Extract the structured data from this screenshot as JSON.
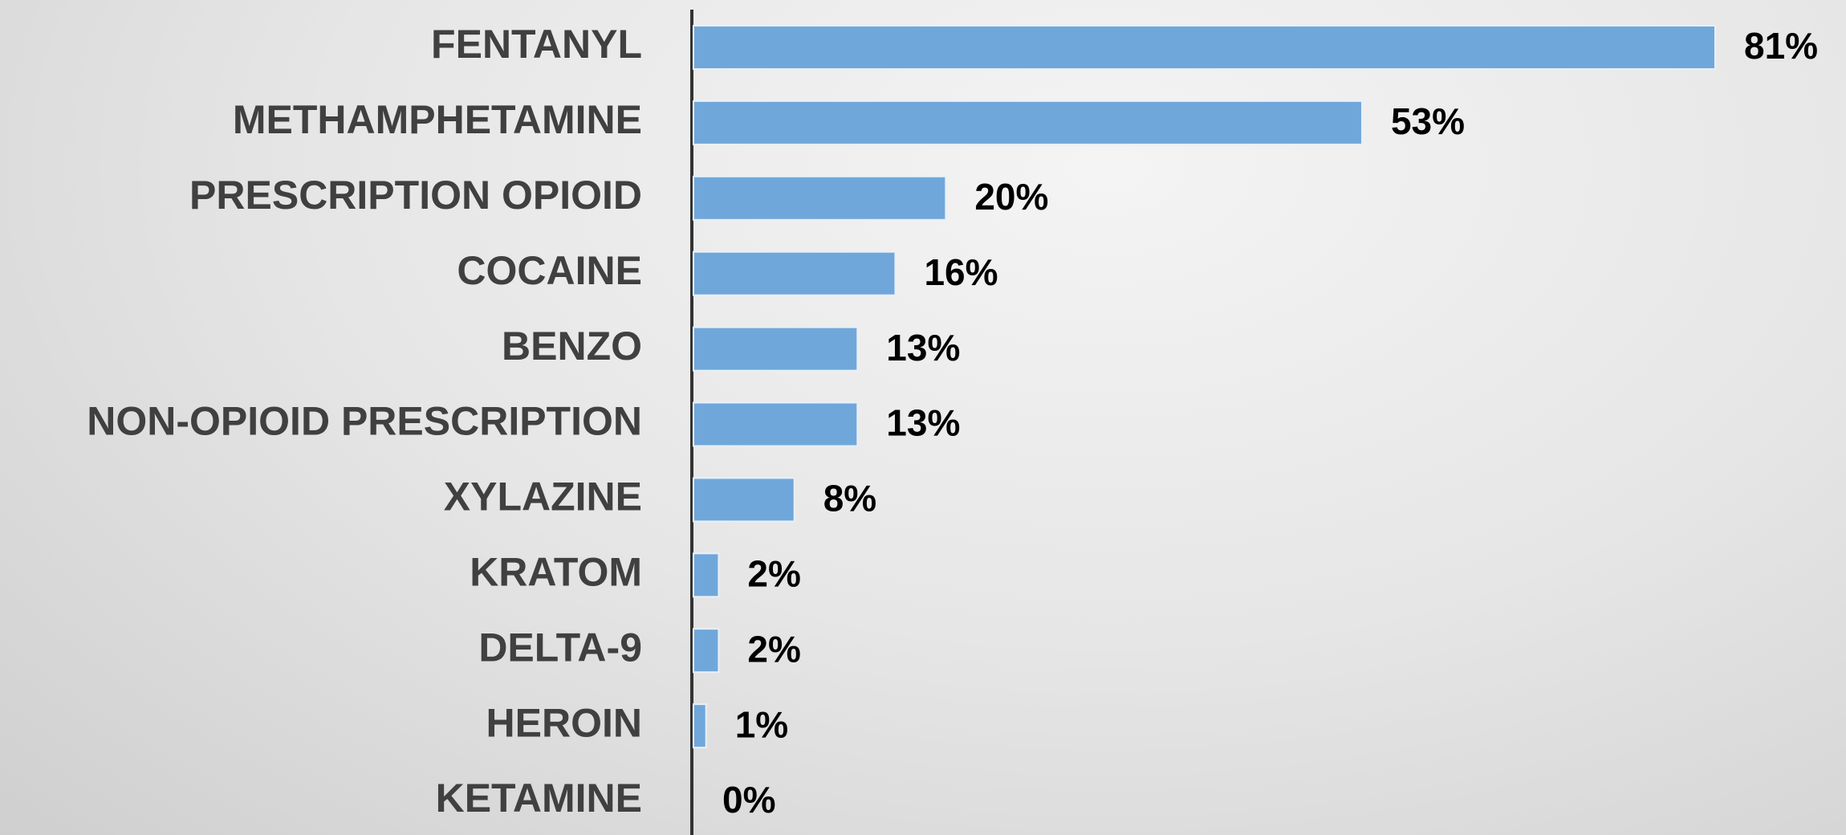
{
  "chart_data": {
    "type": "bar",
    "orientation": "horizontal",
    "categories": [
      "FENTANYL",
      "METHAMPHETAMINE",
      "PRESCRIPTION OPIOID",
      "COCAINE",
      "BENZO",
      "NON-OPIOID PRESCRIPTION",
      "XYLAZINE",
      "KRATOM",
      "DELTA-9",
      "HEROIN",
      "KETAMINE"
    ],
    "values": [
      81,
      53,
      20,
      16,
      13,
      13,
      8,
      2,
      2,
      1,
      0
    ],
    "value_labels": [
      "81%",
      "53%",
      "20%",
      "16%",
      "13%",
      "13%",
      "8%",
      "2%",
      "2%",
      "1%",
      "0%"
    ],
    "color": "#70a7da"
  }
}
